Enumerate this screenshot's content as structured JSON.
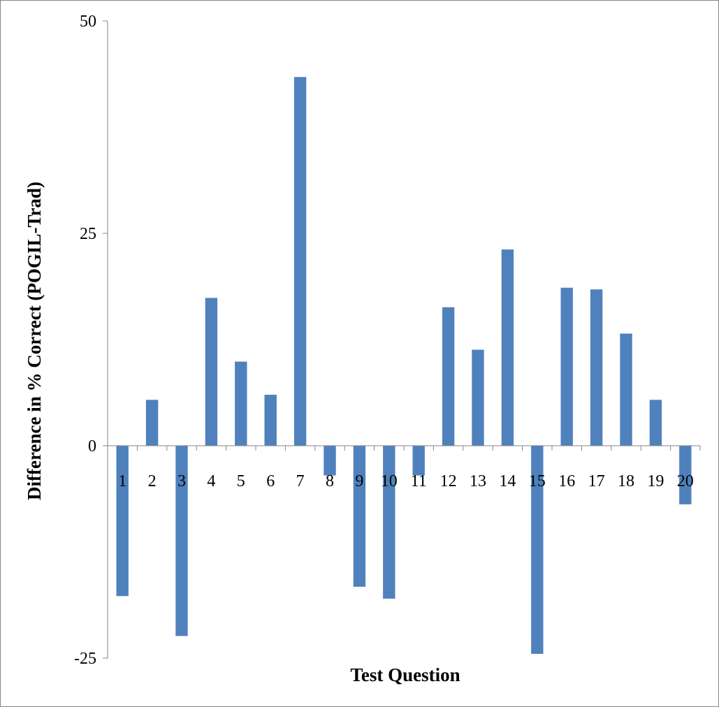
{
  "colors": {
    "bar": "#4f81bd",
    "axis": "#868686",
    "text": "#000000"
  },
  "chart_data": {
    "type": "bar",
    "xlabel": "Test Question",
    "ylabel": "Difference in % Correct (POGIL-Trad)",
    "ylim": [
      -25,
      50
    ],
    "yticks": [
      -25,
      0,
      25,
      50
    ],
    "ytick_labels": [
      "-25",
      "0",
      "25",
      "50"
    ],
    "grid": false,
    "legend": "none",
    "categories": [
      "1",
      "2",
      "3",
      "4",
      "5",
      "6",
      "7",
      "8",
      "9",
      "10",
      "11",
      "12",
      "13",
      "14",
      "15",
      "16",
      "17",
      "18",
      "19",
      "20"
    ],
    "values": [
      -17.7,
      5.4,
      -22.4,
      17.4,
      9.9,
      6.0,
      43.4,
      -3.5,
      -16.6,
      -18.0,
      -3.5,
      16.3,
      11.3,
      23.1,
      -24.5,
      18.6,
      18.4,
      13.2,
      5.4,
      -6.9
    ]
  }
}
